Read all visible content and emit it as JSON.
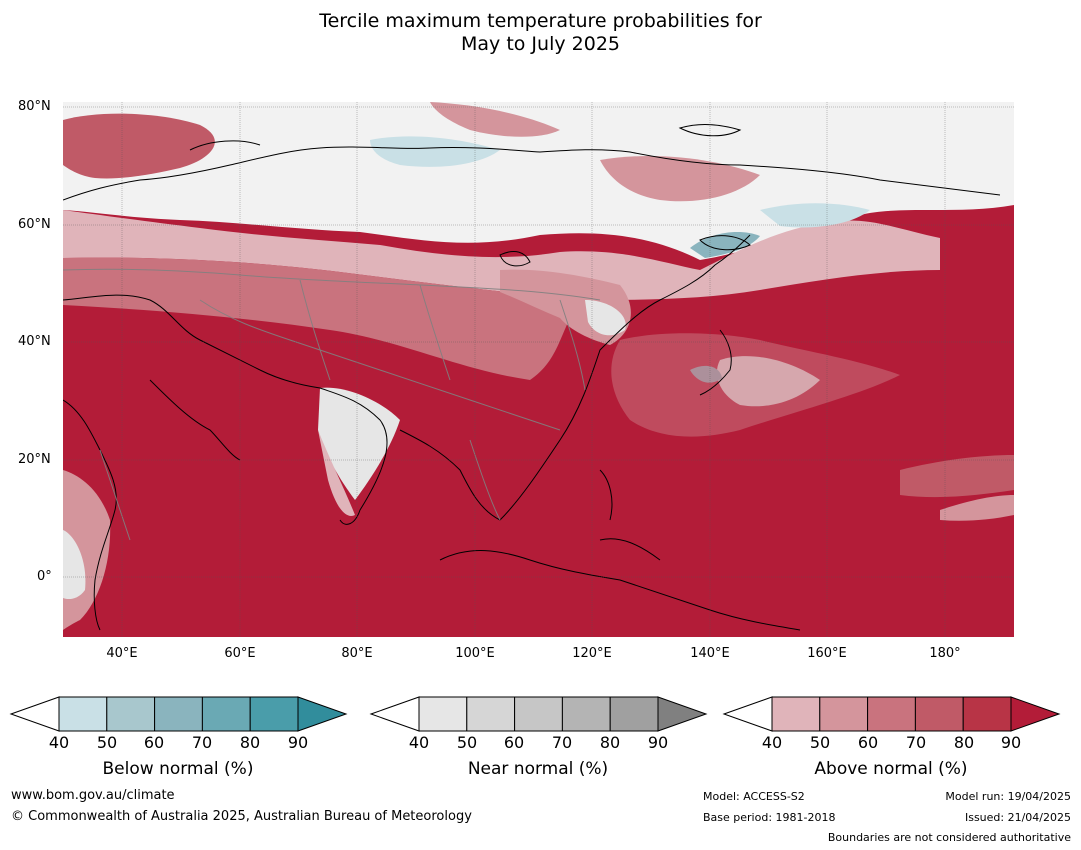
{
  "title_line1": "Tercile maximum temperature probabilities for",
  "title_line2": "May to July 2025",
  "lat_labels": [
    "80°N",
    "60°N",
    "40°N",
    "20°N",
    "0°"
  ],
  "lon_labels": [
    "40°E",
    "60°E",
    "80°E",
    "100°E",
    "120°E",
    "140°E",
    "160°E",
    "180°"
  ],
  "colorbars": [
    {
      "label": "Below normal (%)",
      "ticks": [
        "40",
        "50",
        "60",
        "70",
        "80",
        "90"
      ],
      "colors": [
        "#ffffff",
        "#c9e0e6",
        "#a8c7cd",
        "#8ab4be",
        "#6aa9b4",
        "#4a9daa",
        "#318d9c"
      ]
    },
    {
      "label": "Near normal (%)",
      "ticks": [
        "40",
        "50",
        "60",
        "70",
        "80",
        "90"
      ],
      "colors": [
        "#ffffff",
        "#e6e6e6",
        "#d6d6d6",
        "#c6c6c6",
        "#b4b4b4",
        "#a0a0a0",
        "#808080"
      ]
    },
    {
      "label": "Above normal (%)",
      "ticks": [
        "40",
        "50",
        "60",
        "70",
        "80",
        "90"
      ],
      "colors": [
        "#ffffff",
        "#e0b4ba",
        "#d4959c",
        "#c9737e",
        "#c05a67",
        "#b83446",
        "#b31c38"
      ]
    }
  ],
  "footer": {
    "website": "www.bom.gov.au/climate",
    "copyright": "© Commonwealth of Australia 2025, Australian Bureau of Meteorology",
    "model": "Model: ACCESS-S2",
    "base_period": "Base period: 1981-2018",
    "model_run": "Model run: 19/04/2025",
    "issued": "Issued: 21/04/2025",
    "disclaimer": "Boundaries are not considered authoritative"
  },
  "map_colors": {
    "ocean_above": "#b31c38",
    "land_above": "#b83446",
    "mid_above": "#c05a67",
    "light_above": "#d4959c",
    "pale_above": "#e0b4ba",
    "near": "#e6e6e6",
    "below": "#c9e0e6",
    "below_mid": "#8ab4be",
    "below_dark": "#4a9daa"
  }
}
